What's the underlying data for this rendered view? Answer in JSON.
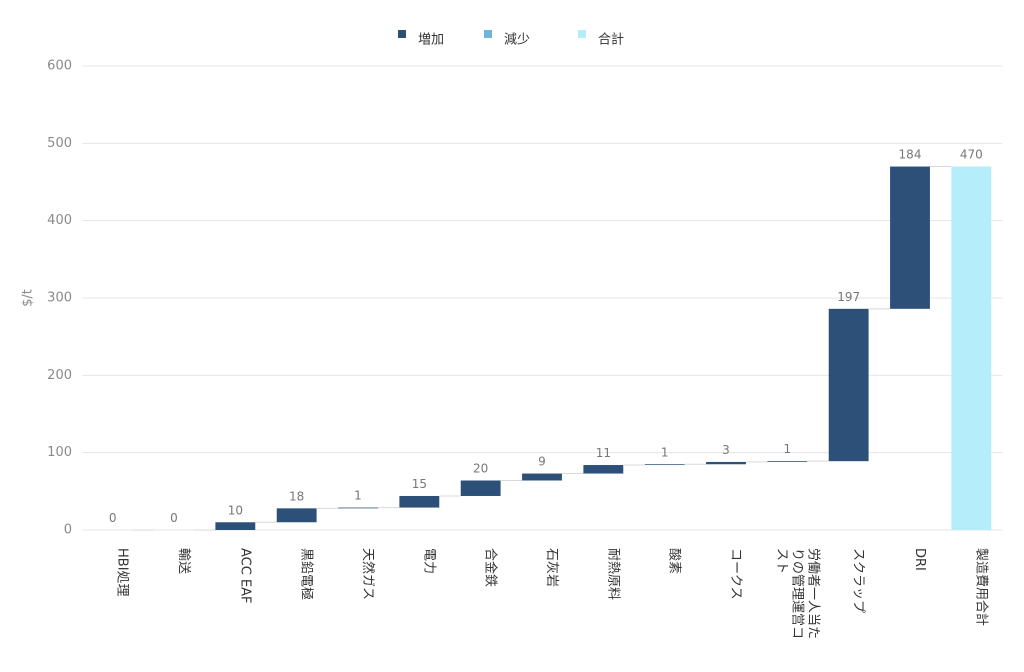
{
  "chart_data": {
    "type": "waterfall",
    "categories": [
      "HBI処理",
      "輸送",
      "ACC EAF",
      "黒鉛電極",
      "天然ガス",
      "電力",
      "合金鉄",
      "石灰岩",
      "耐熱原料",
      "酸素",
      "コークス",
      "労働者一人当たりの管理運営コスト",
      "スクラップ",
      "DRI",
      "製造費用合計"
    ],
    "series": [
      {
        "name": "増加",
        "color": "#2d5079",
        "values": [
          0,
          0,
          10,
          18,
          1,
          15,
          20,
          9,
          11,
          1,
          3,
          1,
          197,
          184,
          null
        ]
      },
      {
        "name": "減少",
        "color": "#6fb3d9",
        "values": [
          null,
          null,
          null,
          null,
          null,
          null,
          null,
          null,
          null,
          null,
          null,
          null,
          null,
          null,
          null
        ]
      },
      {
        "name": "合計",
        "color": "#b5edfb",
        "values": [
          null,
          null,
          null,
          null,
          null,
          null,
          null,
          null,
          null,
          null,
          null,
          null,
          null,
          null,
          470
        ]
      }
    ],
    "y_label": "$/t",
    "ylim": [
      0,
      600
    ],
    "yticks": [
      0,
      100,
      200,
      300,
      400,
      500,
      600
    ],
    "grid": true,
    "legend": "top"
  }
}
